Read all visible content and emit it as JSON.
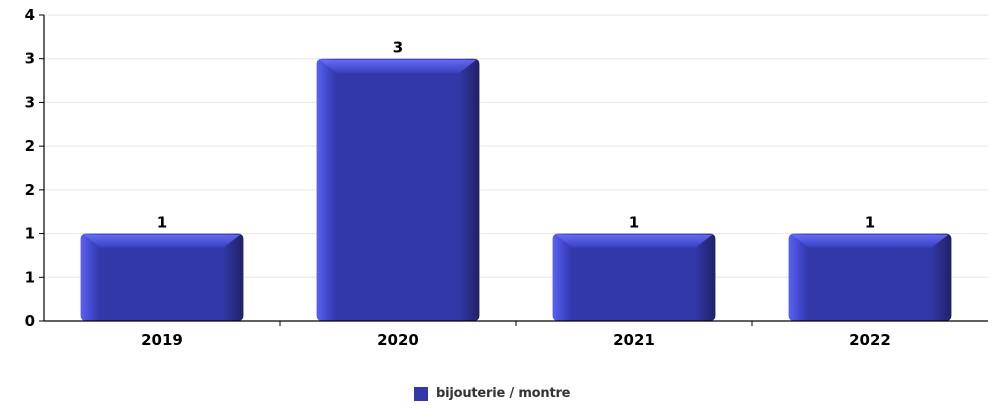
{
  "chart_data": {
    "type": "bar",
    "categories": [
      "2019",
      "2020",
      "2021",
      "2022"
    ],
    "series": [
      {
        "name": "bijouterie / montre",
        "values": [
          1,
          3,
          1,
          1
        ]
      }
    ],
    "data_labels": [
      "1",
      "3",
      "1",
      "1"
    ],
    "y_tick_labels": [
      "0",
      "1",
      "1",
      "2",
      "2",
      "3",
      "3",
      "4"
    ],
    "ylim": [
      0,
      3.5
    ],
    "grid": true,
    "legend_position": "bottom-center",
    "colors": {
      "bar": "#3338a8",
      "bar_light": "#5b62f0",
      "bar_dark": "#22266e",
      "grid": "#e6e6e6",
      "axis": "#000000"
    }
  }
}
